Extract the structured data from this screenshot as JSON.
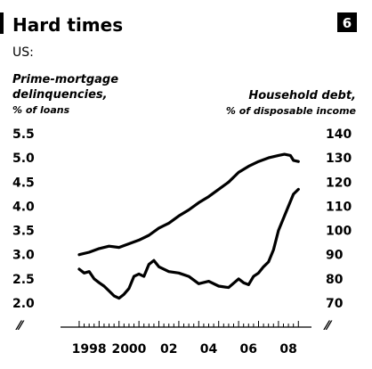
{
  "chart_number": "6",
  "chart_data": {
    "type": "line",
    "title": "Hard times",
    "subtitle": "US:",
    "x_tick_labels": [
      "1998",
      "2000",
      "02",
      "04",
      "06",
      "08"
    ],
    "left_axis": {
      "label_line1": "Prime-mortgage",
      "label_line2": "delinquencies,",
      "label_line3": "% of loans",
      "ticks": [
        "5.5",
        "5.0",
        "4.5",
        "4.0",
        "3.5",
        "3.0",
        "2.5",
        "2.0"
      ],
      "ylim": [
        2.0,
        5.5
      ]
    },
    "right_axis": {
      "label_line1": "Household debt,",
      "label_line2": "% of disposable income",
      "ticks": [
        "140",
        "130",
        "120",
        "110",
        "100",
        "90",
        "80",
        "70"
      ],
      "ylim": [
        70,
        140
      ]
    },
    "axis_break_symbol": "⁄⁄",
    "series": [
      {
        "axis": "right",
        "color": "#000000",
        "points": [
          [
            1998.0,
            90.0
          ],
          [
            1998.5,
            91.0
          ],
          [
            1999.0,
            92.5
          ],
          [
            1999.5,
            93.5
          ],
          [
            2000.0,
            93.0
          ],
          [
            2000.5,
            94.5
          ],
          [
            2001.0,
            96.0
          ],
          [
            2001.5,
            98.0
          ],
          [
            2002.0,
            101.0
          ],
          [
            2002.5,
            103.0
          ],
          [
            2003.0,
            106.0
          ],
          [
            2003.5,
            108.5
          ],
          [
            2004.0,
            111.5
          ],
          [
            2004.5,
            114.0
          ],
          [
            2005.0,
            117.0
          ],
          [
            2005.5,
            120.0
          ],
          [
            2006.0,
            124.0
          ],
          [
            2006.5,
            126.5
          ],
          [
            2007.0,
            128.5
          ],
          [
            2007.5,
            130.0
          ],
          [
            2008.0,
            131.0
          ],
          [
            2008.3,
            131.5
          ],
          [
            2008.6,
            131.0
          ],
          [
            2008.75,
            129.0
          ],
          [
            2009.0,
            128.5
          ]
        ]
      },
      {
        "axis": "left",
        "color": "#000000",
        "points": [
          [
            1998.0,
            2.7
          ],
          [
            1998.25,
            2.62
          ],
          [
            1998.5,
            2.65
          ],
          [
            1998.75,
            2.5
          ],
          [
            1999.0,
            2.42
          ],
          [
            1999.25,
            2.35
          ],
          [
            1999.5,
            2.25
          ],
          [
            1999.75,
            2.15
          ],
          [
            2000.0,
            2.1
          ],
          [
            2000.25,
            2.18
          ],
          [
            2000.5,
            2.3
          ],
          [
            2000.75,
            2.55
          ],
          [
            2001.0,
            2.6
          ],
          [
            2001.25,
            2.55
          ],
          [
            2001.5,
            2.8
          ],
          [
            2001.75,
            2.88
          ],
          [
            2002.0,
            2.75
          ],
          [
            2002.5,
            2.65
          ],
          [
            2003.0,
            2.62
          ],
          [
            2003.5,
            2.55
          ],
          [
            2004.0,
            2.4
          ],
          [
            2004.5,
            2.45
          ],
          [
            2005.0,
            2.35
          ],
          [
            2005.5,
            2.32
          ],
          [
            2006.0,
            2.5
          ],
          [
            2006.25,
            2.42
          ],
          [
            2006.5,
            2.38
          ],
          [
            2006.75,
            2.55
          ],
          [
            2007.0,
            2.62
          ],
          [
            2007.25,
            2.75
          ],
          [
            2007.5,
            2.85
          ],
          [
            2007.75,
            3.1
          ],
          [
            2008.0,
            3.5
          ],
          [
            2008.25,
            3.75
          ],
          [
            2008.5,
            4.0
          ],
          [
            2008.75,
            4.25
          ],
          [
            2009.0,
            4.35
          ]
        ]
      }
    ]
  }
}
